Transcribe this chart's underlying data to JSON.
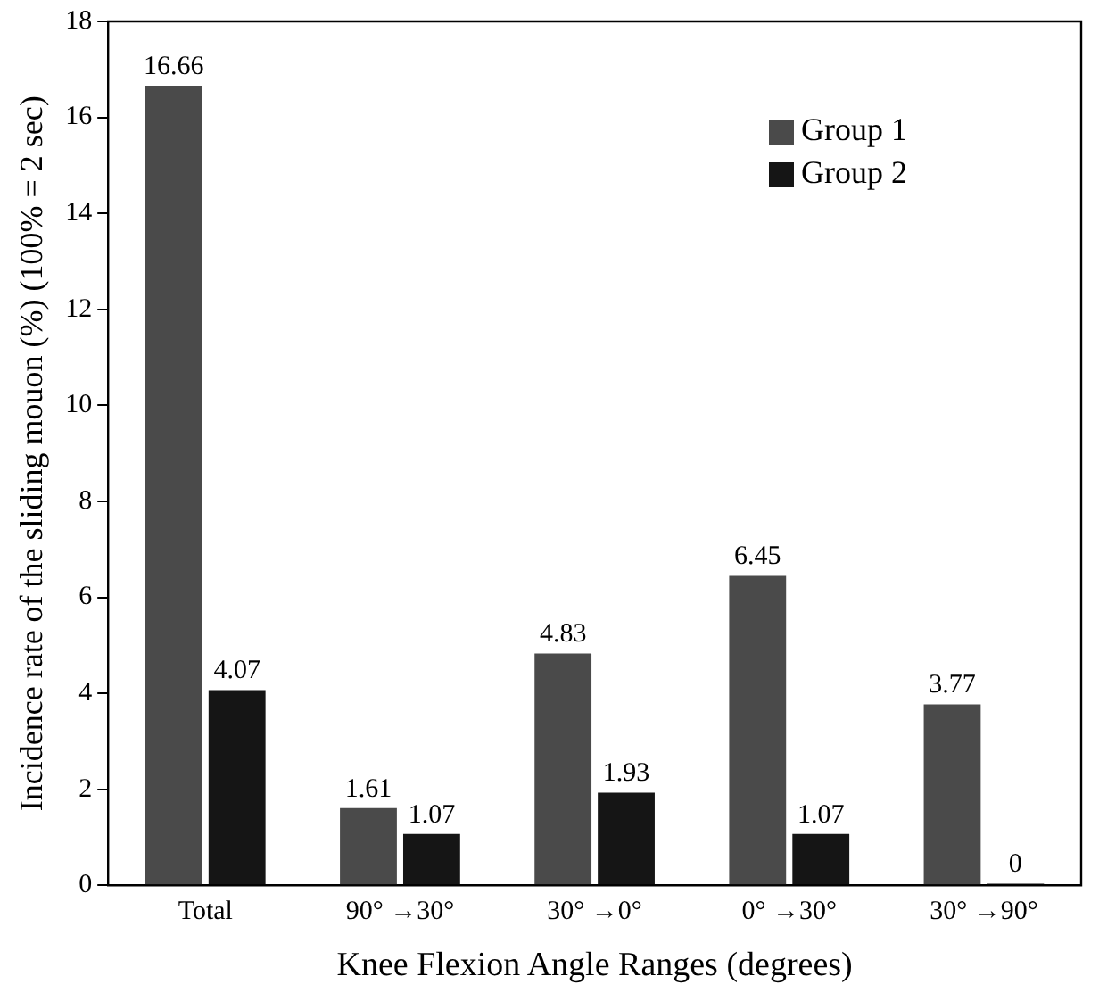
{
  "chart_data": {
    "type": "bar",
    "xlabel": "Knee Flexion Angle Ranges (degrees)",
    "ylabel": "Incidence rate of the sliding mouon (%) (100% = 2 sec)",
    "categories": [
      "Total",
      "90° →30°",
      "30° →0°",
      "0° →30°",
      "30° →90°"
    ],
    "series": [
      {
        "name": "Group 1",
        "color": "#4a4a4a",
        "values": [
          16.66,
          1.61,
          4.83,
          6.45,
          3.77
        ]
      },
      {
        "name": "Group 2",
        "color": "#151515",
        "values": [
          4.07,
          1.07,
          1.93,
          1.07,
          0
        ]
      }
    ],
    "ylim": [
      0,
      18
    ],
    "yticks": [
      0,
      2,
      4,
      6,
      8,
      10,
      12,
      14,
      16,
      18
    ],
    "data_labels": true,
    "legend": "top right",
    "grid": false
  }
}
